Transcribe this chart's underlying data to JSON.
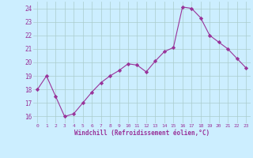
{
  "x": [
    0,
    1,
    2,
    3,
    4,
    5,
    6,
    7,
    8,
    9,
    10,
    11,
    12,
    13,
    14,
    15,
    16,
    17,
    18,
    19,
    20,
    21,
    22,
    23
  ],
  "y": [
    18.0,
    19.0,
    17.5,
    16.0,
    16.2,
    17.0,
    17.8,
    18.5,
    19.0,
    19.4,
    19.9,
    19.8,
    19.3,
    20.1,
    20.8,
    21.1,
    24.1,
    24.0,
    23.3,
    22.0,
    21.5,
    21.0,
    20.3,
    19.6
  ],
  "line_color": "#993399",
  "marker": "D",
  "marker_size": 2.2,
  "bg_color": "#cceeff",
  "grid_color": "#aacccc",
  "xlabel": "Windchill (Refroidissement éolien,°C)",
  "xlabel_color": "#993399",
  "tick_color": "#993399",
  "ylim": [
    15.5,
    24.5
  ],
  "xlim": [
    -0.5,
    23.5
  ],
  "yticks": [
    16,
    17,
    18,
    19,
    20,
    21,
    22,
    23,
    24
  ],
  "xticks": [
    0,
    1,
    2,
    3,
    4,
    5,
    6,
    7,
    8,
    9,
    10,
    11,
    12,
    13,
    14,
    15,
    16,
    17,
    18,
    19,
    20,
    21,
    22,
    23
  ]
}
